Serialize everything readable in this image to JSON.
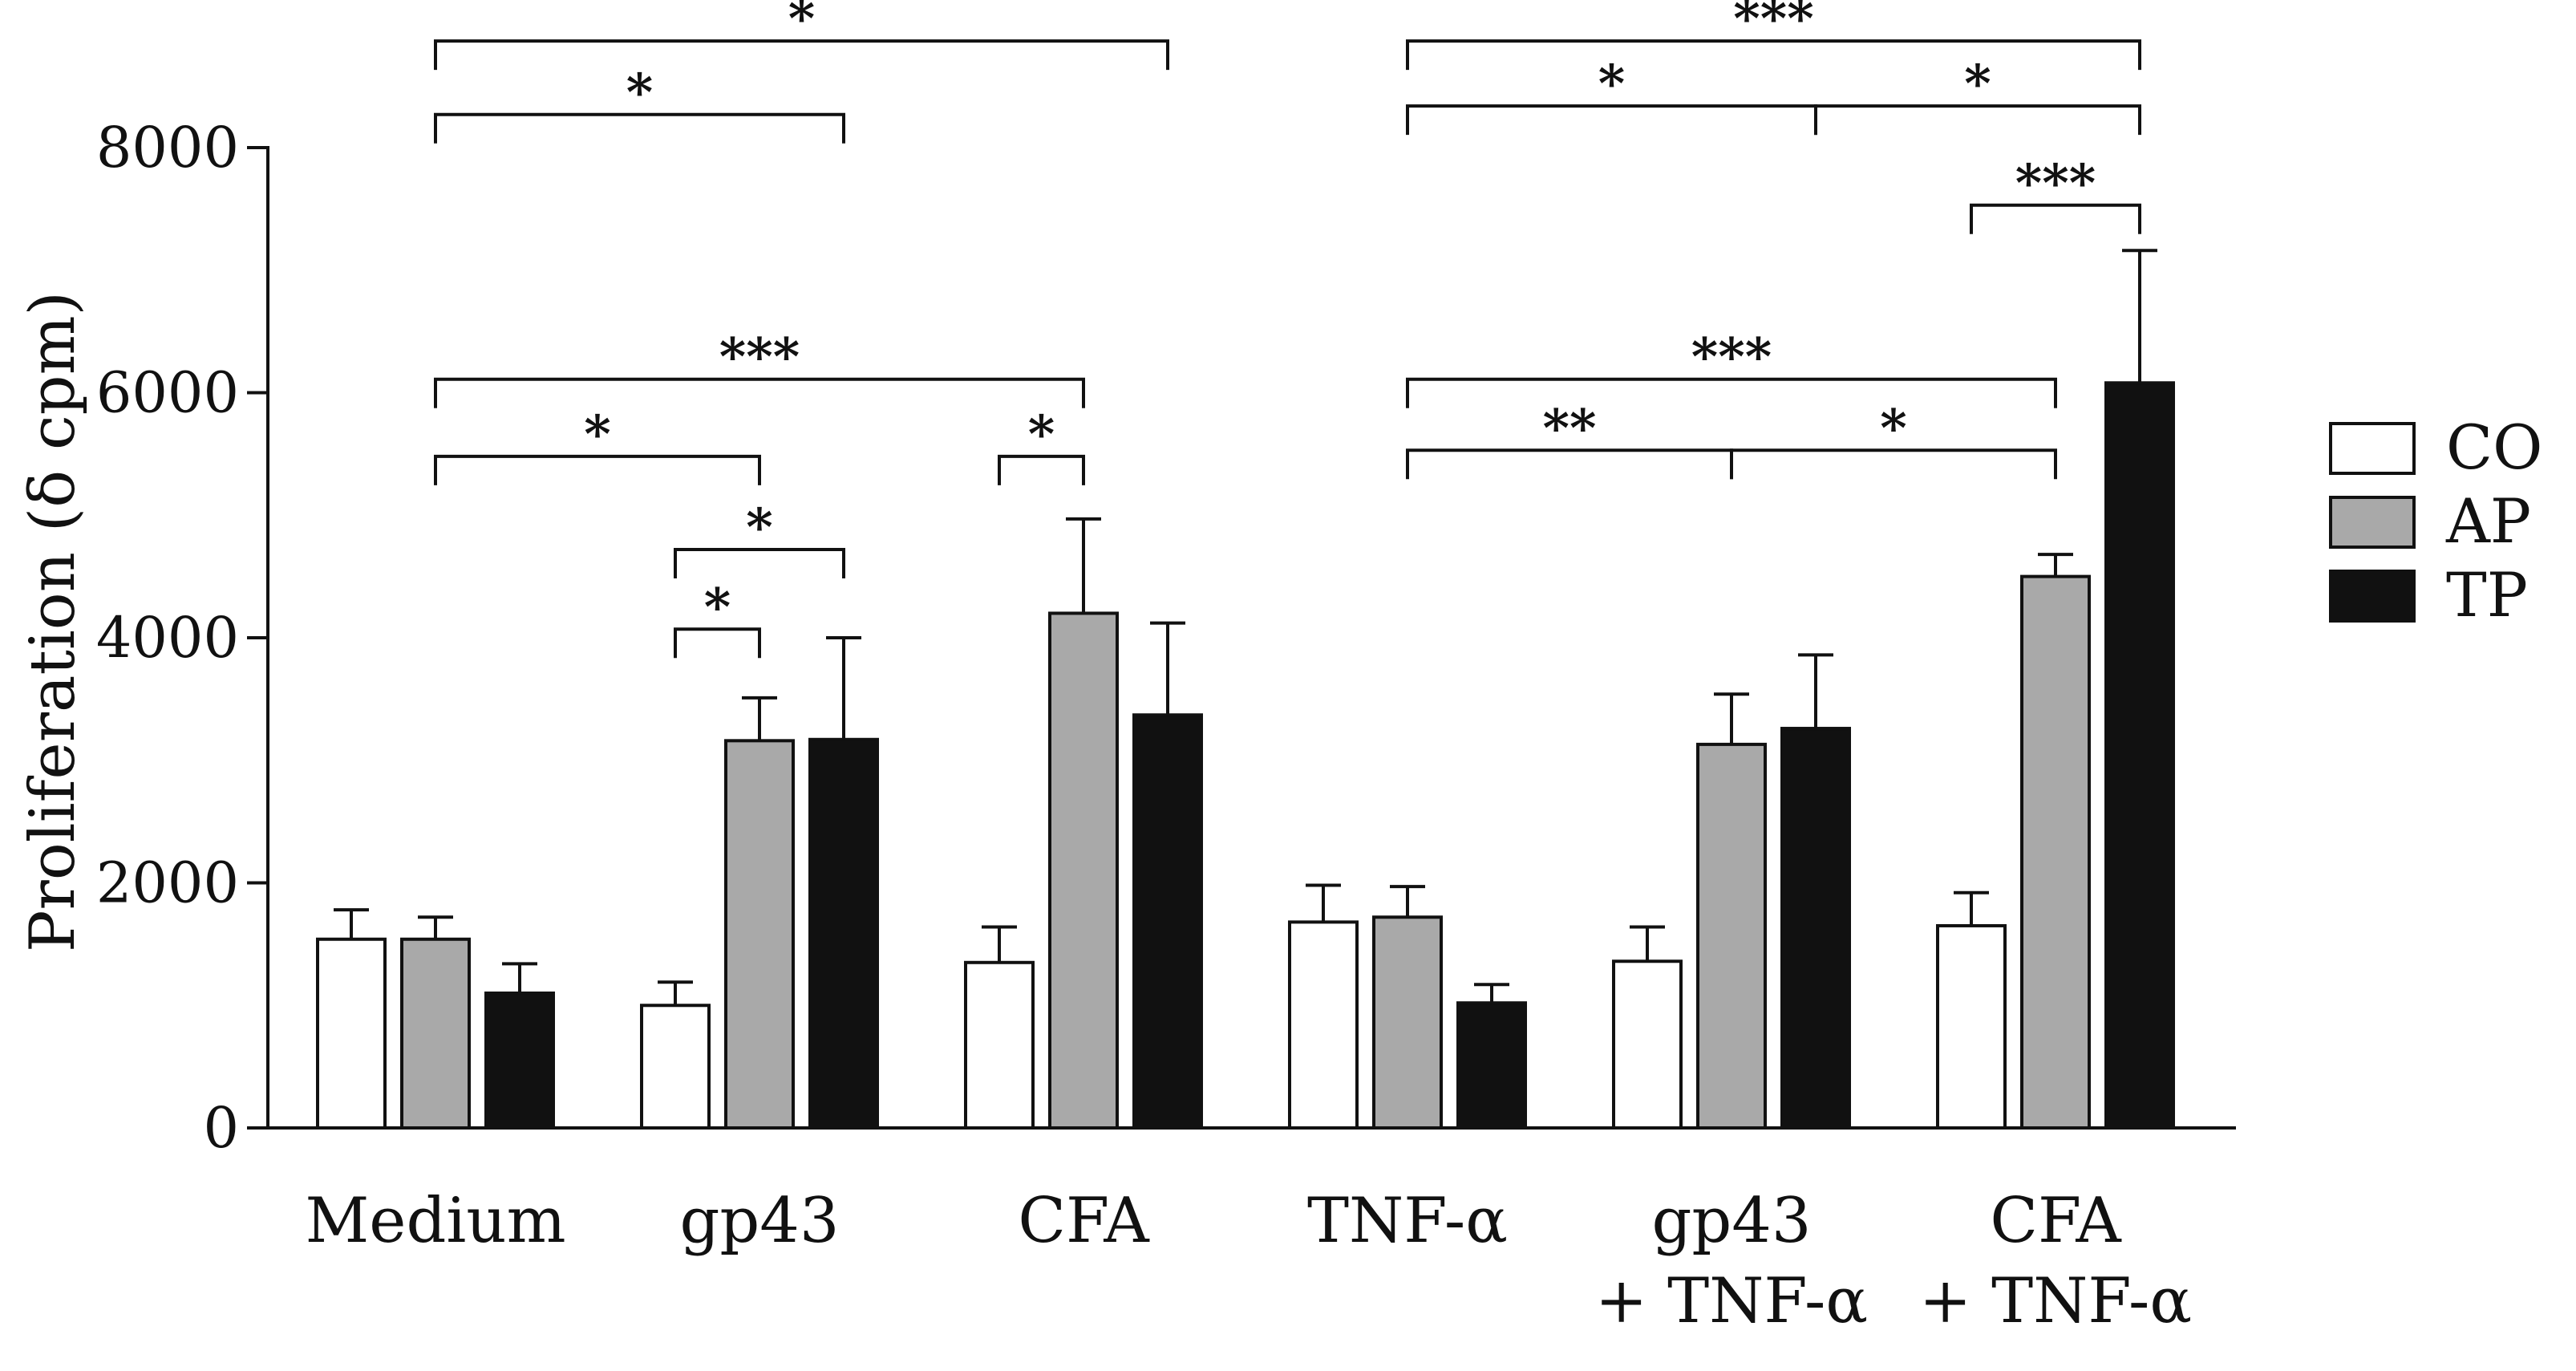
{
  "chart_data": {
    "type": "bar",
    "title": "",
    "xlabel": "",
    "ylabel": "Proliferation (δ cpm)",
    "ylim": [
      0,
      8000
    ],
    "yticks": [
      0,
      2000,
      4000,
      6000,
      8000
    ],
    "ytick_labels": [
      "0",
      "2000",
      "4000",
      "6000",
      "8000"
    ],
    "categories": [
      [
        "Medium"
      ],
      [
        "gp43"
      ],
      [
        "CFA"
      ],
      [
        "TNF-α"
      ],
      [
        "gp43",
        "+ TNF-α"
      ],
      [
        "CFA",
        "+ TNF-α"
      ]
    ],
    "series": [
      {
        "name": "CO",
        "color": "#ffffff",
        "values": [
          1540,
          1000,
          1350,
          1680,
          1360,
          1650
        ],
        "errors": [
          240,
          190,
          290,
          300,
          280,
          270
        ]
      },
      {
        "name": "AP",
        "color": "#a9a9a9",
        "values": [
          1540,
          3160,
          4200,
          1720,
          3130,
          4500
        ],
        "errors": [
          180,
          350,
          770,
          250,
          410,
          180
        ]
      },
      {
        "name": "TP",
        "color": "#111111",
        "values": [
          1100,
          3170,
          3370,
          1020,
          3260,
          6080
        ],
        "errors": [
          240,
          830,
          750,
          150,
          600,
          1080
        ]
      }
    ],
    "legend_position": "right",
    "significance": [
      {
        "from": [
          0,
          1
        ],
        "to": [
          2,
          2
        ],
        "label": "*",
        "level": 8870
      },
      {
        "from": [
          0,
          1
        ],
        "to": [
          1,
          2
        ],
        "label": "*",
        "level": 8270
      },
      {
        "from": [
          0,
          1
        ],
        "to": [
          2,
          1
        ],
        "label": "***",
        "level": 6110
      },
      {
        "from": [
          0,
          1
        ],
        "to": [
          1,
          1
        ],
        "label": "*",
        "level": 5480
      },
      {
        "from": [
          2,
          0
        ],
        "to": [
          2,
          1
        ],
        "label": "*",
        "level": 5480
      },
      {
        "from": [
          1,
          0
        ],
        "to": [
          1,
          2
        ],
        "label": "*",
        "level": 4720
      },
      {
        "from": [
          1,
          0
        ],
        "to": [
          1,
          1
        ],
        "label": "*",
        "level": 4070
      },
      {
        "from": [
          3,
          1
        ],
        "to": [
          5,
          2
        ],
        "label": "***",
        "level": 8870
      },
      {
        "from": [
          3,
          1
        ],
        "to": [
          4,
          2
        ],
        "label": "*",
        "level": 8340
      },
      {
        "from": [
          4,
          2
        ],
        "to": [
          5,
          2
        ],
        "label": "*",
        "level": 8340
      },
      {
        "from": [
          5,
          0
        ],
        "to": [
          5,
          2
        ],
        "label": "***",
        "level": 7530
      },
      {
        "from": [
          3,
          1
        ],
        "to": [
          5,
          1
        ],
        "label": "***",
        "level": 6110
      },
      {
        "from": [
          3,
          1
        ],
        "to": [
          4,
          1
        ],
        "label": "**",
        "level": 5530
      },
      {
        "from": [
          4,
          1
        ],
        "to": [
          5,
          1
        ],
        "label": "*",
        "level": 5530
      }
    ]
  }
}
